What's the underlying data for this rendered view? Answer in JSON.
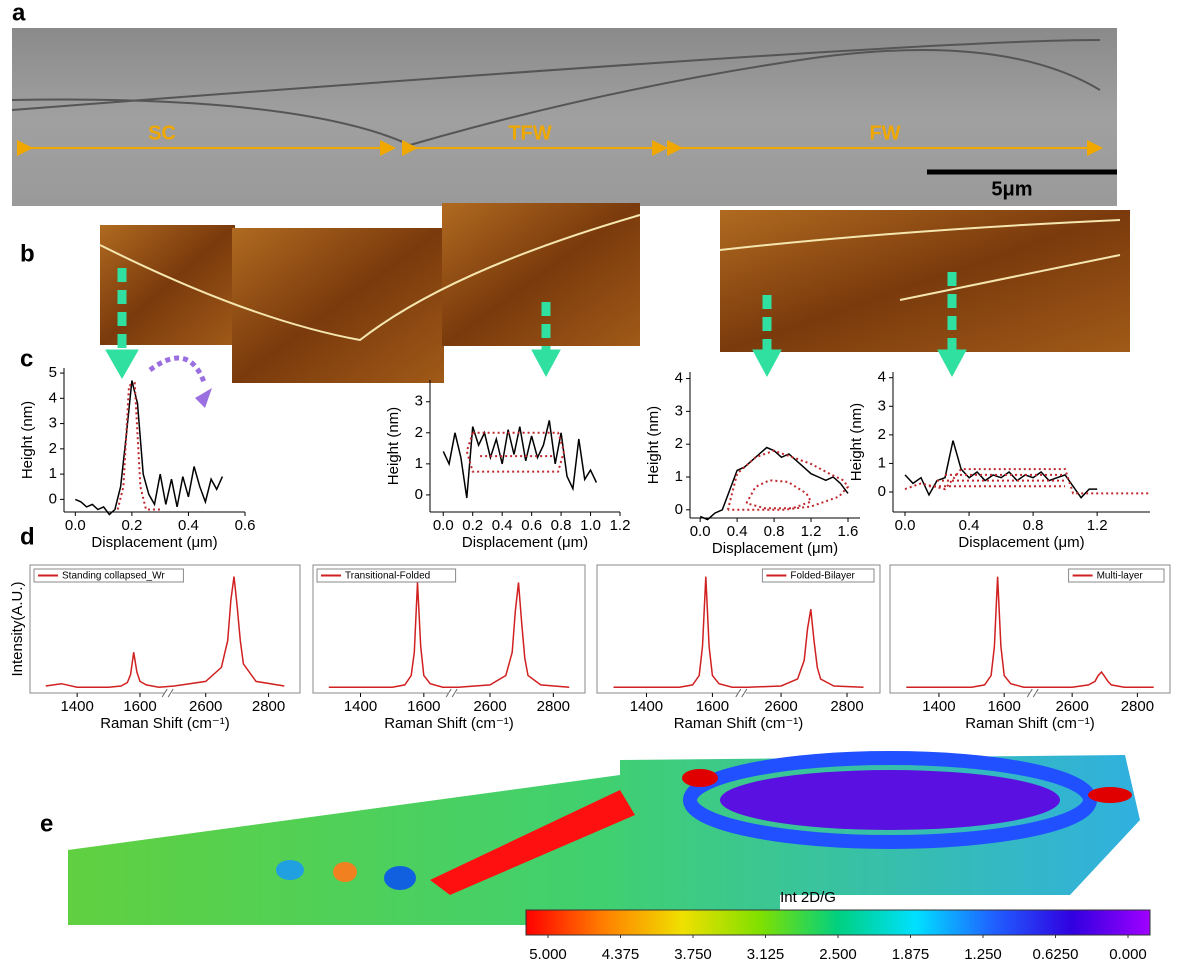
{
  "panel_labels": [
    "a",
    "b",
    "c",
    "d",
    "e"
  ],
  "sem_image": {
    "regions": [
      "SC",
      "TFW",
      "FW"
    ],
    "scale_bar": "5μm"
  },
  "chart_data": [
    {
      "type": "line",
      "x_label": "Displacement (μm)",
      "y_label": "Height (nm)",
      "xlim": [
        -0.04,
        0.6
      ],
      "ylim": [
        -0.5,
        5.2
      ],
      "xticks": [
        {
          "value": 0,
          "label": "0.0"
        },
        0.2,
        0.4,
        0.6
      ],
      "yticks": [
        0,
        1,
        2,
        3,
        4,
        5
      ],
      "series": [
        {
          "color": "#000000",
          "style": "solid",
          "x": [
            0,
            0.02,
            0.04,
            0.06,
            0.08,
            0.1,
            0.12,
            0.14,
            0.16,
            0.18,
            0.2,
            0.22,
            0.24,
            0.26,
            0.28,
            0.3,
            0.32,
            0.34,
            0.36,
            0.38,
            0.4,
            0.42,
            0.44,
            0.46,
            0.48,
            0.5,
            0.52
          ],
          "values": [
            0,
            -0.1,
            -0.3,
            -0.2,
            -0.4,
            -0.3,
            -0.6,
            -0.4,
            0.5,
            2.5,
            4.7,
            3.8,
            1.0,
            0.2,
            -0.2,
            1.0,
            -0.2,
            0.8,
            -0.3,
            0.9,
            0.1,
            1.3,
            0.5,
            -0.1,
            0.8,
            0.4,
            0.9
          ]
        },
        {
          "color": "#c0282d",
          "style": "dotted",
          "x": [
            0.15,
            0.17,
            0.19,
            0.21,
            0.23,
            0.25,
            0.3
          ],
          "values": [
            -0.4,
            0.5,
            4.5,
            4.6,
            0.5,
            -0.4,
            -0.4
          ]
        }
      ]
    },
    {
      "type": "line",
      "x_label": "Displacement (μm)",
      "y_label": "Height (nm)",
      "xlim": [
        -0.09,
        1.2
      ],
      "ylim": [
        -0.55,
        3.7
      ],
      "xticks": [
        {
          "value": 0,
          "label": "0.0"
        },
        0.2,
        0.4,
        0.6,
        0.8,
        {
          "value": 1,
          "label": "1.0"
        },
        1.2
      ],
      "yticks": [
        0,
        1,
        2,
        3
      ],
      "series": [
        {
          "color": "#000000",
          "style": "solid",
          "x": [
            0,
            0.04,
            0.08,
            0.12,
            0.16,
            0.2,
            0.24,
            0.28,
            0.32,
            0.36,
            0.4,
            0.44,
            0.48,
            0.52,
            0.56,
            0.6,
            0.64,
            0.68,
            0.72,
            0.76,
            0.8,
            0.84,
            0.88,
            0.92,
            0.96,
            1.0,
            1.04
          ],
          "values": [
            1.4,
            1.0,
            2.0,
            1.2,
            -0.1,
            2.2,
            1.6,
            2.0,
            1.2,
            1.8,
            1.0,
            2.1,
            1.3,
            2.2,
            1.1,
            1.9,
            1.2,
            1.6,
            2.4,
            1.0,
            2.0,
            0.6,
            0.2,
            1.8,
            0.5,
            0.8,
            0.4
          ]
        },
        {
          "color": "#c0282d",
          "style": "dotted",
          "x": [
            0.2,
            0.16,
            0.2,
            0.78,
            0.82,
            0.78,
            0.2
          ],
          "values": [
            2.0,
            1.4,
            0.75,
            0.75,
            1.4,
            2.0,
            2.0
          ]
        },
        {
          "color": "#c0282d",
          "style": "dotted",
          "x": [
            0.25,
            0.75
          ],
          "values": [
            1.25,
            1.25
          ]
        }
      ]
    },
    {
      "type": "line",
      "x_label": "Displacement (μm)",
      "y_label": "Height (nm)",
      "xlim": [
        -0.11,
        1.73
      ],
      "ylim": [
        -0.25,
        4.2
      ],
      "xticks": [
        {
          "value": 0,
          "label": "0.0"
        },
        0.4,
        0.8,
        1.2,
        1.6
      ],
      "yticks": [
        0,
        1,
        2,
        3,
        4
      ],
      "series": [
        {
          "color": "#000000",
          "style": "solid",
          "x": [
            0,
            0.08,
            0.16,
            0.24,
            0.32,
            0.4,
            0.48,
            0.56,
            0.64,
            0.72,
            0.8,
            0.88,
            0.96,
            1.04,
            1.12,
            1.2,
            1.28,
            1.36,
            1.44,
            1.52,
            1.6
          ],
          "values": [
            -0.2,
            -0.3,
            -0.1,
            0,
            0.6,
            1.2,
            1.3,
            1.5,
            1.7,
            1.9,
            1.8,
            1.6,
            1.7,
            1.5,
            1.3,
            1.1,
            1.0,
            0.9,
            1.0,
            0.8,
            0.5
          ]
        },
        {
          "color": "#c0282d",
          "style": "dotted",
          "x": [
            0.3,
            0.4,
            0.6,
            0.8,
            1.0,
            1.2,
            1.4,
            1.55,
            1.6,
            1.5,
            1.2,
            0.9,
            0.6,
            0.3
          ],
          "values": [
            0,
            1.1,
            1.6,
            1.8,
            1.6,
            1.4,
            1.1,
            0.9,
            0.7,
            0.4,
            0.1,
            0,
            0,
            0
          ]
        },
        {
          "color": "#c0282d",
          "style": "dotted",
          "x": [
            0.5,
            0.6,
            0.75,
            0.95,
            1.15,
            1.2,
            1.0,
            0.7,
            0.5
          ],
          "values": [
            0.2,
            0.7,
            0.9,
            0.85,
            0.5,
            0.25,
            0.05,
            0.05,
            0.2
          ]
        }
      ]
    },
    {
      "type": "line",
      "x_label": "Displacement (μm)",
      "y_label": "Height (nm)",
      "xlim": [
        -0.075,
        1.53
      ],
      "ylim": [
        -0.7,
        4.2
      ],
      "xticks": [
        {
          "value": 0,
          "label": "0.0"
        },
        0.4,
        0.8,
        1.2
      ],
      "yticks": [
        0,
        1,
        2,
        3,
        4
      ],
      "series": [
        {
          "color": "#000000",
          "style": "solid",
          "x": [
            0,
            0.05,
            0.1,
            0.15,
            0.2,
            0.25,
            0.3,
            0.35,
            0.4,
            0.45,
            0.5,
            0.55,
            0.6,
            0.65,
            0.7,
            0.75,
            0.8,
            0.85,
            0.9,
            0.95,
            1.0,
            1.05,
            1.1,
            1.15,
            1.2
          ],
          "values": [
            0.6,
            0.3,
            0.5,
            -0.1,
            0.4,
            0.5,
            1.8,
            0.8,
            0.5,
            0.7,
            0.4,
            0.6,
            0.5,
            0.7,
            0.4,
            0.6,
            0.5,
            0.7,
            0.4,
            0.5,
            0.6,
            0.2,
            -0.2,
            0.1,
            0.1
          ]
        },
        {
          "color": "#c0282d",
          "style": "dotted",
          "x": [
            0,
            0.1,
            0.25,
            0.35,
            1.0,
            1.05,
            1.53
          ],
          "values": [
            0.1,
            0.3,
            0.1,
            0.8,
            0.8,
            -0.05,
            -0.05
          ]
        },
        {
          "color": "#c0282d",
          "style": "dotted",
          "x": [
            0.15,
            1.0
          ],
          "values": [
            0.2,
            0.2
          ]
        },
        {
          "color": "#c0282d",
          "style": "dotted",
          "x": [
            0.2,
            1.0
          ],
          "values": [
            0.4,
            0.4
          ]
        },
        {
          "color": "#c0282d",
          "style": "dotted",
          "x": [
            0.25,
            1.0
          ],
          "values": [
            0.6,
            0.6
          ]
        }
      ]
    },
    {
      "type": "line",
      "x_label": "Raman Shift (cm⁻¹)",
      "y_label": "Intensity(A.U.)",
      "legend": "top-left",
      "xlim": [
        1250,
        2900
      ],
      "xbreak": [
        1680,
        2490
      ],
      "ylim": [
        0,
        1.1
      ],
      "xticks": [
        1400,
        1600,
        2600,
        2800
      ],
      "x": [
        1300,
        1350,
        1400,
        1500,
        1540,
        1560,
        1570,
        1580,
        1590,
        1600,
        1620,
        1660,
        2500,
        2600,
        2650,
        2670,
        2680,
        2690,
        2700,
        2710,
        2720,
        2760,
        2850
      ],
      "series": [
        {
          "name": "Standing collapsed_Wr",
          "color": "#d02020",
          "style": "solid",
          "values": [
            0.06,
            0.08,
            0.05,
            0.05,
            0.06,
            0.09,
            0.16,
            0.35,
            0.18,
            0.1,
            0.07,
            0.05,
            0.06,
            0.1,
            0.22,
            0.45,
            0.8,
            1.0,
            0.75,
            0.45,
            0.25,
            0.1,
            0.06
          ]
        }
      ]
    },
    {
      "type": "line",
      "x_label": "Raman Shift (cm⁻¹)",
      "legend": "top-left",
      "xlim": [
        1250,
        2900
      ],
      "xbreak": [
        1680,
        2490
      ],
      "ylim": [
        0,
        1.1
      ],
      "xticks": [
        1400,
        1600,
        2600,
        2800
      ],
      "x": [
        1300,
        1350,
        1400,
        1500,
        1540,
        1560,
        1570,
        1580,
        1590,
        1600,
        1620,
        1660,
        2500,
        2600,
        2650,
        2670,
        2680,
        2690,
        2700,
        2710,
        2720,
        2760,
        2850
      ],
      "series": [
        {
          "name": "Transitional-Folded",
          "color": "#d02020",
          "style": "solid",
          "values": [
            0.05,
            0.05,
            0.05,
            0.05,
            0.07,
            0.15,
            0.35,
            0.95,
            0.4,
            0.15,
            0.08,
            0.05,
            0.05,
            0.07,
            0.15,
            0.35,
            0.7,
            0.95,
            0.6,
            0.3,
            0.15,
            0.07,
            0.05
          ]
        }
      ]
    },
    {
      "type": "line",
      "x_label": "Raman Shift (cm⁻¹)",
      "legend": "top-right",
      "xlim": [
        1250,
        2900
      ],
      "xbreak": [
        1680,
        2490
      ],
      "ylim": [
        0,
        1.1
      ],
      "xticks": [
        1400,
        1600,
        2600,
        2800
      ],
      "x": [
        1300,
        1350,
        1400,
        1500,
        1540,
        1560,
        1570,
        1580,
        1590,
        1600,
        1620,
        1660,
        2500,
        2600,
        2650,
        2670,
        2680,
        2690,
        2700,
        2710,
        2720,
        2760,
        2850
      ],
      "series": [
        {
          "name": "Folded-Bilayer",
          "color": "#d02020",
          "style": "solid",
          "values": [
            0.05,
            0.05,
            0.05,
            0.05,
            0.07,
            0.15,
            0.4,
            1.0,
            0.4,
            0.15,
            0.08,
            0.05,
            0.05,
            0.06,
            0.12,
            0.28,
            0.55,
            0.72,
            0.45,
            0.22,
            0.12,
            0.06,
            0.05
          ]
        }
      ]
    },
    {
      "type": "line",
      "x_label": "Raman Shift (cm⁻¹)",
      "legend": "top-right",
      "xlim": [
        1250,
        2900
      ],
      "xbreak": [
        1680,
        2490
      ],
      "ylim": [
        0,
        1.1
      ],
      "xticks": [
        1400,
        1600,
        2600,
        2800
      ],
      "x": [
        1300,
        1350,
        1400,
        1500,
        1540,
        1560,
        1570,
        1580,
        1590,
        1600,
        1620,
        1660,
        2500,
        2600,
        2650,
        2670,
        2680,
        2690,
        2700,
        2710,
        2720,
        2760,
        2850
      ],
      "series": [
        {
          "name": "Multi-layer",
          "color": "#d02020",
          "style": "solid",
          "values": [
            0.05,
            0.05,
            0.05,
            0.05,
            0.07,
            0.15,
            0.4,
            1.0,
            0.4,
            0.15,
            0.08,
            0.05,
            0.05,
            0.05,
            0.07,
            0.1,
            0.15,
            0.18,
            0.14,
            0.1,
            0.07,
            0.05,
            0.05
          ]
        }
      ]
    },
    {
      "type": "colorbar",
      "title": "Int 2D/G",
      "lim": [
        5,
        0
      ],
      "colors": [
        "#ff0000",
        "#ff8000",
        "#f0e000",
        "#80e000",
        "#00d080",
        "#00e0ff",
        "#2060ff",
        "#3000e0",
        "#a000ff"
      ],
      "ticks": [
        {
          "value": 5,
          "label": "5.000"
        },
        {
          "value": 4.375,
          "label": "4.375"
        },
        {
          "value": 3.75,
          "label": "3.750"
        },
        {
          "value": 3.125,
          "label": "3.125"
        },
        {
          "value": 2.5,
          "label": "2.500"
        },
        {
          "value": 1.875,
          "label": "1.875"
        },
        {
          "value": 1.25,
          "label": "1.250"
        },
        {
          "value": 0.625,
          "label": "0.6250"
        },
        {
          "value": 0,
          "label": "0.000"
        }
      ]
    }
  ]
}
